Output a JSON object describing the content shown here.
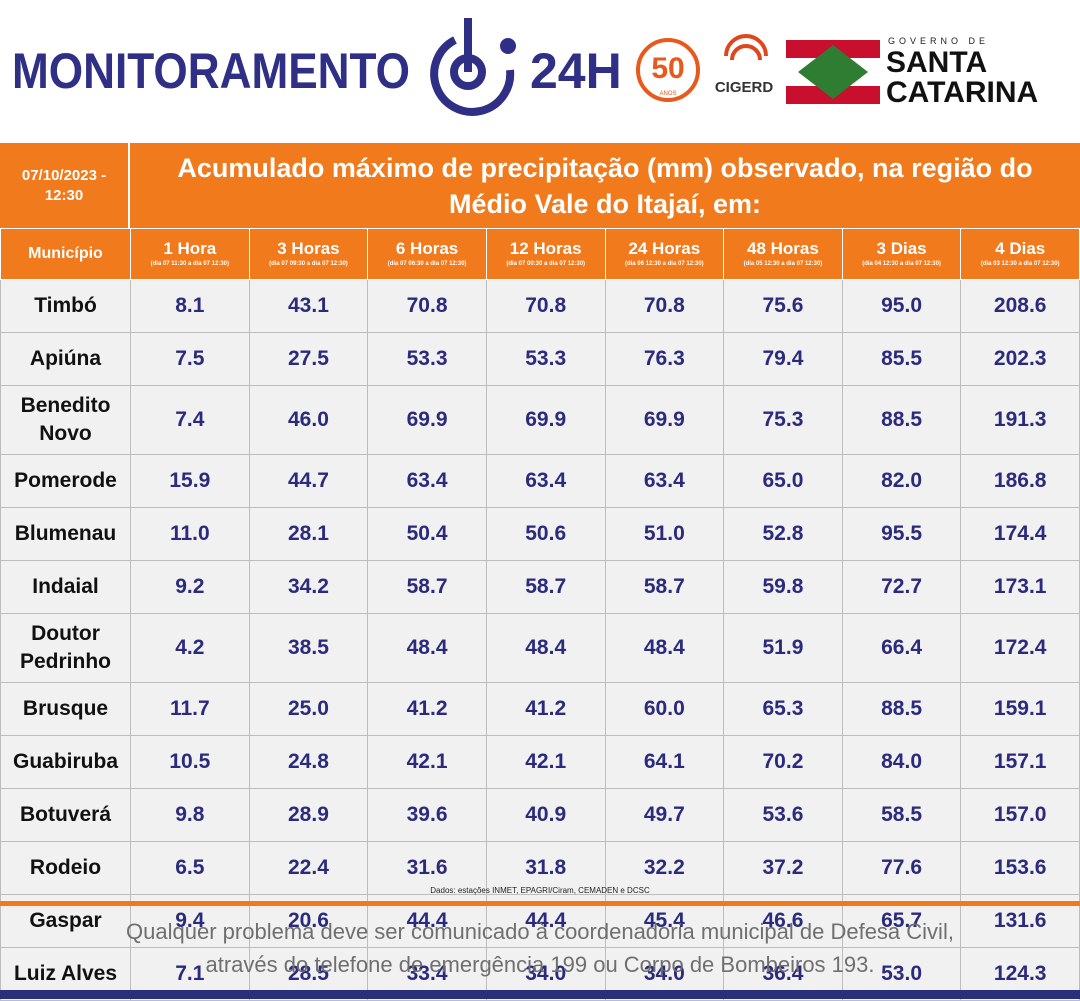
{
  "header": {
    "logo_left": "MONITORAMENTO",
    "logo_right": "24H",
    "badge_number": "50",
    "badge_text": "ANOS",
    "cigerd": "CIGERD",
    "gov_small": "GOVERNO DE",
    "gov_line1": "SANTA",
    "gov_line2": "CATARINA"
  },
  "banner": {
    "date": "07/10/2023 - 12:30",
    "title": "Acumulado máximo de precipitação (mm) observado, na região do Médio Vale do Itajaí, em:"
  },
  "table": {
    "first_header": "Município",
    "columns": [
      {
        "title": "1 Hora",
        "period": "(dia 07 11:30 a dia 07 12:30)"
      },
      {
        "title": "3 Horas",
        "period": "(dia 07 09:30 a dia 07 12:30)"
      },
      {
        "title": "6 Horas",
        "period": "(dia 07 06:30 a dia 07 12:30)"
      },
      {
        "title": "12 Horas",
        "period": "(dia 07 00:30 a dia 07 12:30)"
      },
      {
        "title": "24 Horas",
        "period": "(dia 06 12:30 a dia 07 12:30)"
      },
      {
        "title": "48 Horas",
        "period": "(dia 05 12:30 a dia 07 12:30)"
      },
      {
        "title": "3 Dias",
        "period": "(dia 04 12:30 a dia 07 12:30)"
      },
      {
        "title": "4 Dias",
        "period": "(dia 03 12:30 a dia 07 12:30)"
      }
    ],
    "rows": [
      [
        "Timbó",
        "8.1",
        "43.1",
        "70.8",
        "70.8",
        "70.8",
        "75.6",
        "95.0",
        "208.6"
      ],
      [
        "Apiúna",
        "7.5",
        "27.5",
        "53.3",
        "53.3",
        "76.3",
        "79.4",
        "85.5",
        "202.3"
      ],
      [
        "Benedito Novo",
        "7.4",
        "46.0",
        "69.9",
        "69.9",
        "69.9",
        "75.3",
        "88.5",
        "191.3"
      ],
      [
        "Pomerode",
        "15.9",
        "44.7",
        "63.4",
        "63.4",
        "63.4",
        "65.0",
        "82.0",
        "186.8"
      ],
      [
        "Blumenau",
        "11.0",
        "28.1",
        "50.4",
        "50.6",
        "51.0",
        "52.8",
        "95.5",
        "174.4"
      ],
      [
        "Indaial",
        "9.2",
        "34.2",
        "58.7",
        "58.7",
        "58.7",
        "59.8",
        "72.7",
        "173.1"
      ],
      [
        "Doutor Pedrinho",
        "4.2",
        "38.5",
        "48.4",
        "48.4",
        "48.4",
        "51.9",
        "66.4",
        "172.4"
      ],
      [
        "Brusque",
        "11.7",
        "25.0",
        "41.2",
        "41.2",
        "60.0",
        "65.3",
        "88.5",
        "159.1"
      ],
      [
        "Guabiruba",
        "10.5",
        "24.8",
        "42.1",
        "42.1",
        "64.1",
        "70.2",
        "84.0",
        "157.1"
      ],
      [
        "Botuverá",
        "9.8",
        "28.9",
        "39.6",
        "40.9",
        "49.7",
        "53.6",
        "58.5",
        "157.0"
      ],
      [
        "Rodeio",
        "6.5",
        "22.4",
        "31.6",
        "31.8",
        "32.2",
        "37.2",
        "77.6",
        "153.6"
      ],
      [
        "Gaspar",
        "9.4",
        "20.6",
        "44.4",
        "44.4",
        "45.4",
        "46.6",
        "65.7",
        "131.6"
      ],
      [
        "Luiz Alves",
        "7.1",
        "28.5",
        "33.4",
        "34.0",
        "34.0",
        "36.4",
        "53.0",
        "124.3"
      ]
    ],
    "source": "Dados: estações INMET, EPAGRI/Ciram, CEMADEN e DCSC"
  },
  "footer": {
    "lines": [
      "Qualquer problema deve ser comunicado à coordenadoria municipal de Defesa Civil,",
      "através do telefone de emergência 199 ou Corpo de Bombeiros 193."
    ]
  }
}
